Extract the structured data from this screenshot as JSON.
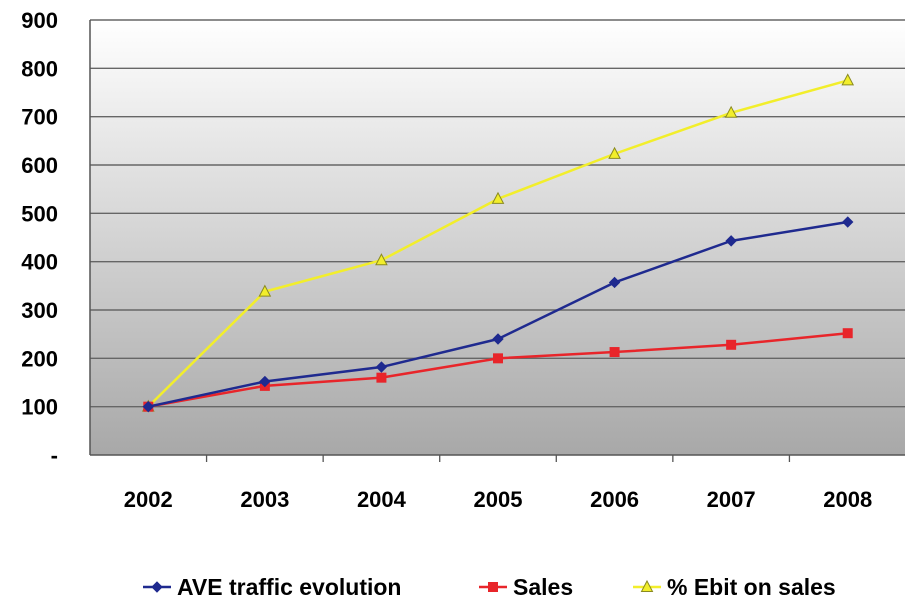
{
  "chart_data": {
    "type": "line",
    "categories": [
      "2002",
      "2003",
      "2004",
      "2005",
      "2006",
      "2007",
      "2008"
    ],
    "y_tick_labels": [
      "-",
      "100",
      "200",
      "300",
      "400",
      "500",
      "600",
      "700",
      "800",
      "900"
    ],
    "ylim": [
      0,
      900
    ],
    "grid": true,
    "legend_position": "bottom",
    "series": [
      {
        "name": "AVE traffic evolution",
        "color": "#1f2a8f",
        "marker": "diamond",
        "values": [
          100,
          152,
          182,
          240,
          357,
          443,
          482
        ]
      },
      {
        "name": "Sales",
        "color": "#e8252a",
        "marker": "square",
        "values": [
          100,
          143,
          160,
          200,
          213,
          228,
          252
        ]
      },
      {
        "name": "% Ebit on sales",
        "color": "#f2ee2b",
        "marker": "triangle",
        "values": [
          100,
          338,
          403,
          530,
          623,
          708,
          775
        ]
      }
    ],
    "plot_background": {
      "top": "#ffffff",
      "bottom": "#a8a8a8"
    }
  }
}
